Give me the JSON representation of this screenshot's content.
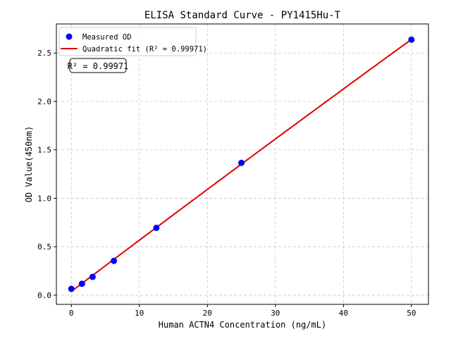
{
  "chart_data": {
    "type": "scatter",
    "title": "ELISA Standard Curve - PY1415Hu-T",
    "xlabel": "Human ACTN4 Concentration (ng/mL)",
    "ylabel": "OD Value(450nm)",
    "xlim": [
      -2.2,
      52.5
    ],
    "ylim": [
      -0.095,
      2.8
    ],
    "xticks": [
      0,
      10,
      20,
      30,
      40,
      50
    ],
    "yticks": [
      0.0,
      0.5,
      1.0,
      1.5,
      2.0,
      2.5
    ],
    "xtick_labels": [
      "0",
      "10",
      "20",
      "30",
      "40",
      "50"
    ],
    "ytick_labels": [
      "0.0",
      "0.5",
      "1.0",
      "1.5",
      "2.0",
      "2.5"
    ],
    "grid": true,
    "legend_placement": "top-left",
    "series": [
      {
        "name": "Measured OD",
        "kind": "scatter",
        "color": "#0000ff",
        "x": [
          0,
          1.5625,
          3.125,
          6.25,
          12.5,
          25,
          50
        ],
        "y": [
          0.065,
          0.118,
          0.189,
          0.354,
          0.695,
          1.366,
          2.638
        ]
      },
      {
        "name": "Quadratic fit (R² = 0.99971)",
        "kind": "line",
        "color": "#e00000",
        "fit": "quadratic"
      }
    ],
    "annotation": "R² = 0.99971"
  }
}
